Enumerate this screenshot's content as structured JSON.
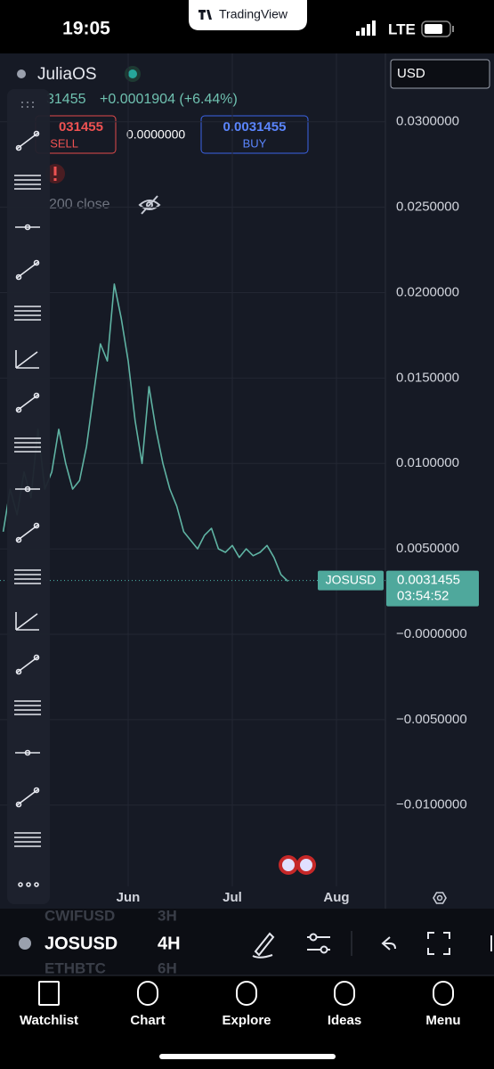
{
  "status_bar": {
    "time": "19:05",
    "app": "TradingView",
    "network": "LTE"
  },
  "header": {
    "symbol": "JuliaOS",
    "currency": "USD",
    "price_partial": "31455",
    "change": "+0.0001904 (+6.44%)"
  },
  "trade": {
    "sell_price": "031455",
    "sell_label": "SELL",
    "spread": "0.0000000",
    "buy_price": "0.0031455",
    "buy_label": "BUY"
  },
  "indicator": "200 close",
  "chart_data": {
    "type": "line",
    "categories": [
      null,
      null,
      null,
      null,
      null,
      null,
      null,
      null,
      null,
      null,
      null,
      null,
      null,
      null,
      null,
      null,
      null,
      null,
      "Jun",
      null,
      null,
      null,
      null,
      null,
      null,
      null,
      null,
      null,
      null,
      null,
      null,
      null,
      null,
      "Jul",
      null,
      null,
      null,
      null,
      null,
      null,
      null,
      null,
      null,
      null,
      null,
      null,
      null,
      null,
      "Aug",
      null,
      null,
      null,
      null,
      null,
      null
    ],
    "series": [
      {
        "name": "JOSUSD",
        "color": "#5fb3a3",
        "values": [
          0.006,
          0.0085,
          0.007,
          0.0095,
          0.008,
          0.012,
          0.0085,
          0.0095,
          0.012,
          0.01,
          0.0085,
          0.009,
          0.011,
          0.014,
          0.017,
          0.016,
          0.0205,
          0.0185,
          0.016,
          0.0125,
          0.01,
          0.0145,
          0.012,
          0.01,
          0.0085,
          0.0075,
          0.006,
          0.0055,
          0.005,
          0.0058,
          0.0062,
          0.005,
          0.0048,
          0.0052,
          0.0045,
          0.005,
          0.0046,
          0.0048,
          0.0052,
          0.0045,
          0.0035,
          0.0031,
          null,
          null,
          null,
          null,
          null,
          null,
          null,
          null,
          null,
          null,
          null,
          null,
          null
        ]
      }
    ],
    "ylim": [
      -0.0145,
      0.0339
    ],
    "yticks": [
      {
        "value": 0.03,
        "label": "0.0300000"
      },
      {
        "value": 0.025,
        "label": "0.0250000"
      },
      {
        "value": 0.02,
        "label": "0.0200000"
      },
      {
        "value": 0.015,
        "label": "0.0150000"
      },
      {
        "value": 0.01,
        "label": "0.0100000"
      },
      {
        "value": 0.005,
        "label": "0.0050000"
      },
      {
        "value": 0,
        "label": "−0.0000000"
      },
      {
        "value": -0.005,
        "label": "−0.0050000"
      },
      {
        "value": -0.01,
        "label": "−0.0100000"
      }
    ],
    "grid": true,
    "last_price": 0.0031455,
    "last_symbol": "JOSUSD",
    "countdown": "03:54:52"
  },
  "symbol_bar": {
    "symbol": "JOSUSD",
    "interval": "4H",
    "ghost_above": "CWIFUSD",
    "ghost_above_interval": "3H",
    "ghost_below": "ETHBTC",
    "ghost_below_interval": "6H"
  },
  "nav": [
    "Watchlist",
    "Chart",
    "Explore",
    "Ideas",
    "Menu"
  ]
}
